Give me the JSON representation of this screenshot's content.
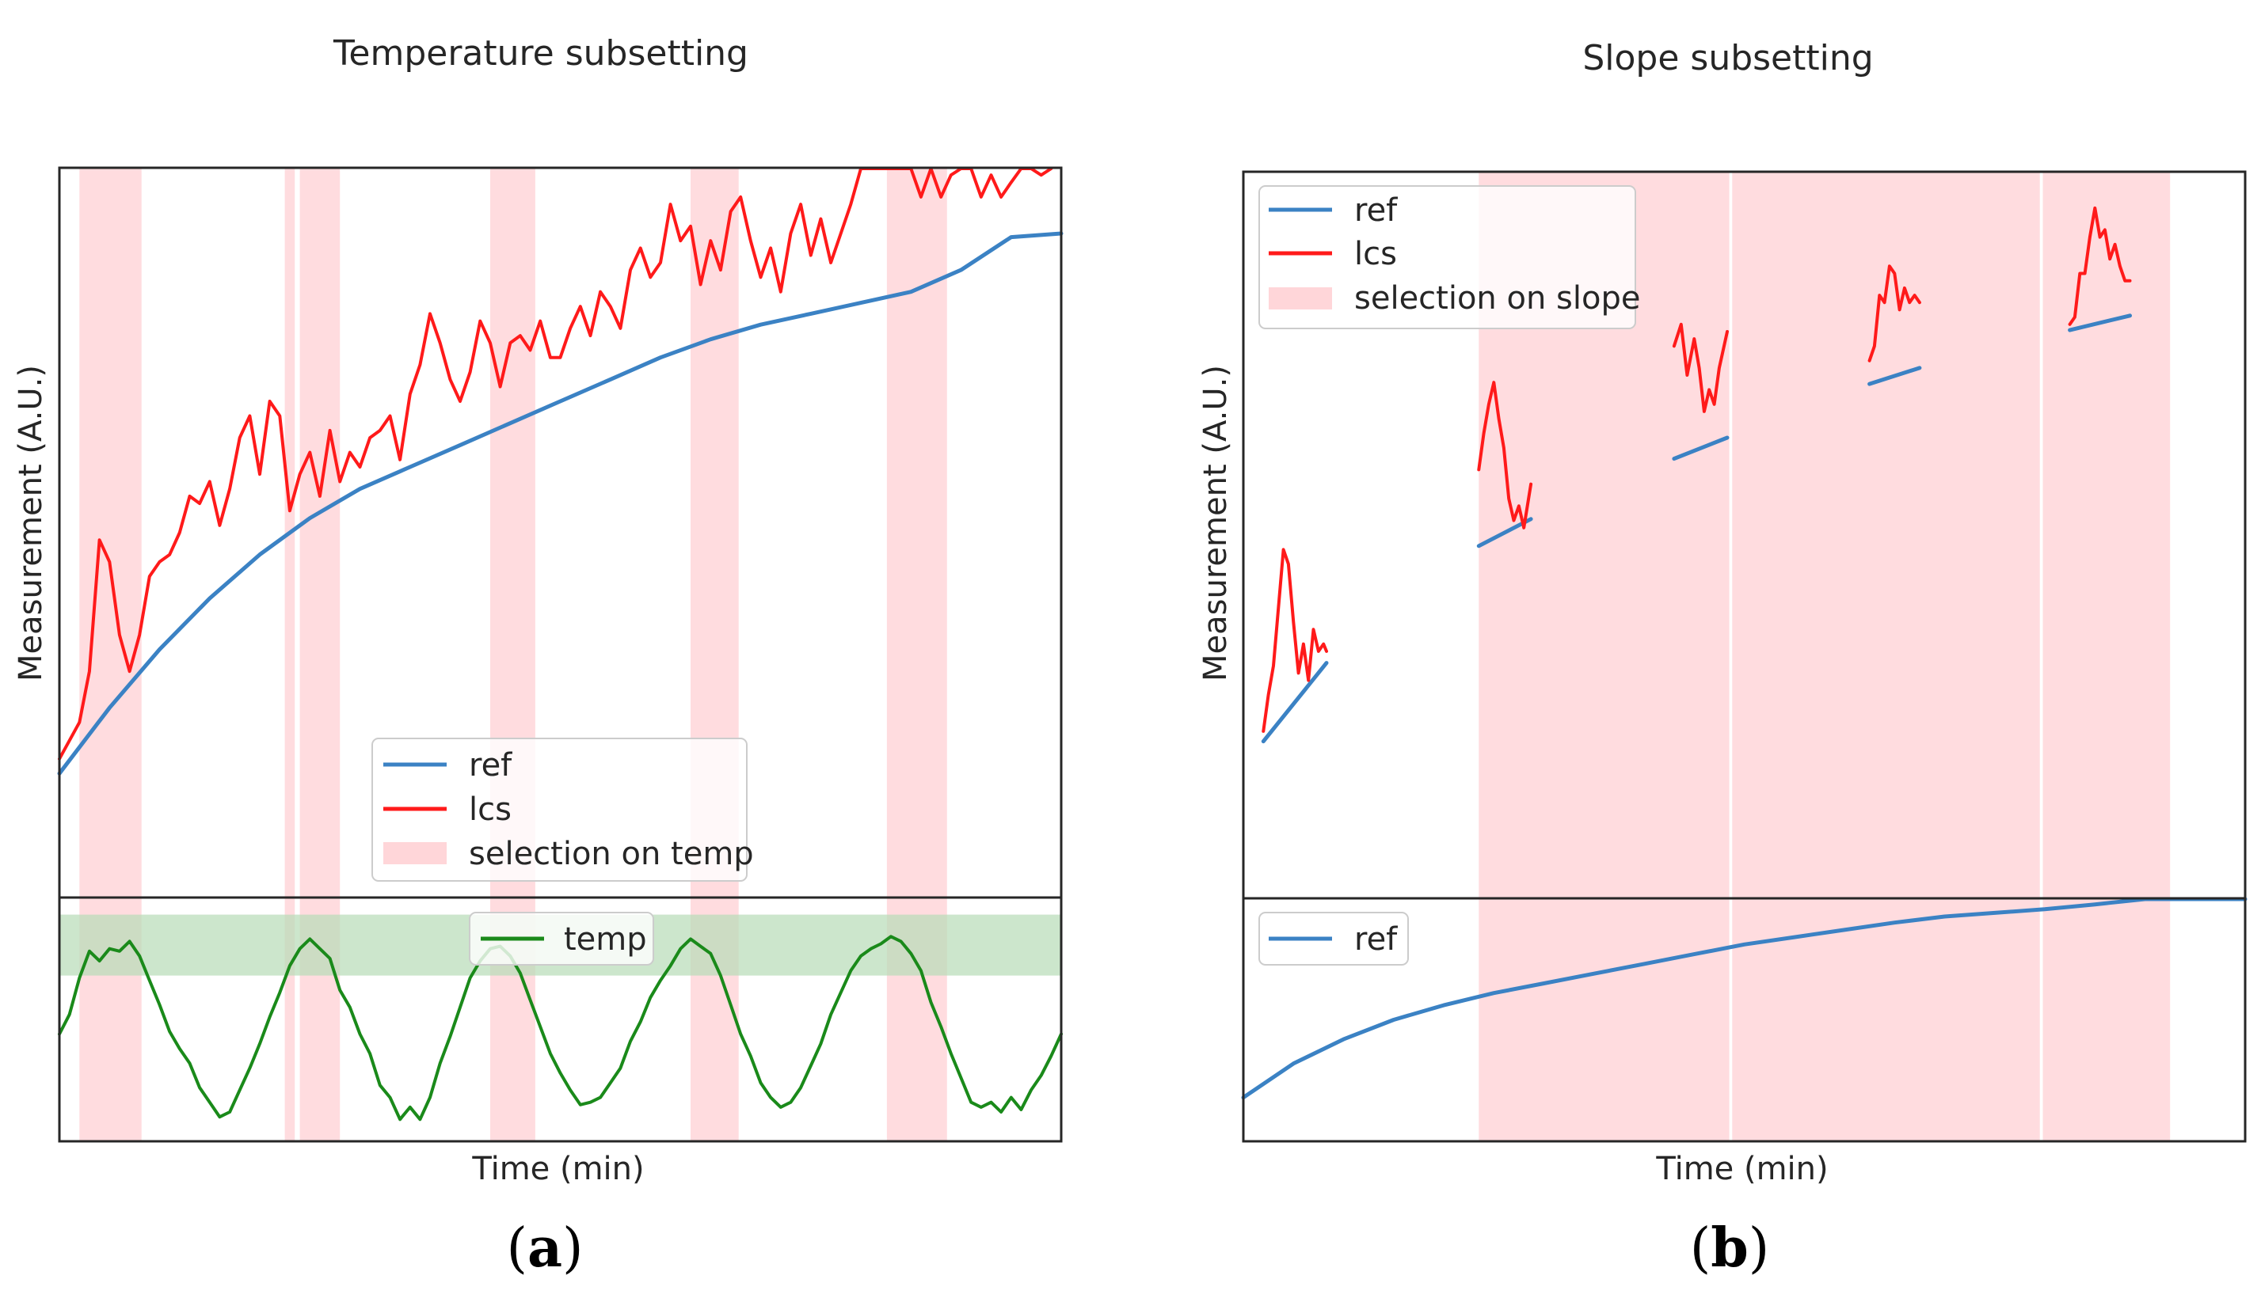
{
  "figure": {
    "caption_a": "(a)",
    "caption_b": "(b)",
    "caption_a_letter": "a",
    "caption_b_letter": "b"
  },
  "colors": {
    "ref": "#3b82c4",
    "lcs": "#ff1a1a",
    "temp": "#1a8a1a",
    "selection": "#ffd6d9",
    "temp_band": "#b7dcb7",
    "frame": "#262626"
  },
  "chart_data": [
    {
      "type": "line",
      "id": "panel-a",
      "title": "Temperature subsetting",
      "xlabel": "Time (min)",
      "ylabel": "Measurement (A.U.)",
      "xlim": [
        0,
        100
      ],
      "top": {
        "ylim": [
          0,
          100
        ],
        "legend": {
          "position": "lower-center",
          "entries": [
            "ref",
            "lcs",
            "selection on temp"
          ]
        },
        "series": [
          {
            "name": "ref",
            "x": [
              0,
              5,
              10,
              15,
              20,
              25,
              30,
              35,
              40,
              45,
              50,
              55,
              60,
              65,
              70,
              75,
              80,
              85,
              90,
              95,
              100
            ],
            "values": [
              17,
              26,
              34,
              41,
              47,
              52,
              56,
              59,
              62,
              65,
              68,
              71,
              74,
              76.5,
              78.5,
              80,
              81.5,
              83,
              86,
              90.5,
              91
            ]
          },
          {
            "name": "lcs",
            "x": [
              0,
              2,
              3,
              4,
              5,
              6,
              7,
              8,
              9,
              10,
              11,
              12,
              13,
              14,
              15,
              16,
              17,
              18,
              19,
              20,
              21,
              22,
              23,
              24,
              25,
              26,
              27,
              28,
              29,
              30,
              31,
              32,
              33,
              34,
              35,
              36,
              37,
              38,
              39,
              40,
              41,
              42,
              43,
              44,
              45,
              46,
              47,
              48,
              49,
              50,
              51,
              52,
              53,
              54,
              55,
              56,
              57,
              58,
              59,
              60,
              61,
              62,
              63,
              64,
              65,
              66,
              67,
              68,
              69,
              70,
              71,
              72,
              73,
              74,
              75,
              76,
              77,
              78,
              79,
              80,
              81,
              82,
              83,
              84,
              85,
              86,
              87,
              88,
              89,
              90,
              91,
              92,
              93,
              94,
              95,
              96,
              97,
              98,
              99
            ],
            "values": [
              19,
              24,
              31,
              49,
              46,
              36,
              31,
              36,
              44,
              46,
              47,
              50,
              55,
              54,
              57,
              51,
              56,
              63,
              66,
              58,
              68,
              66,
              53,
              58,
              61,
              55,
              64,
              57,
              61,
              59,
              63,
              64,
              66,
              60,
              69,
              73,
              80,
              76,
              71,
              68,
              72,
              79,
              76,
              70,
              76,
              77,
              75,
              79,
              74,
              74,
              78,
              81,
              77,
              83,
              81,
              78,
              86,
              89,
              85,
              87,
              95,
              90,
              92,
              84,
              90,
              86,
              94,
              96,
              90,
              85,
              89,
              83,
              91,
              95,
              88,
              93,
              87,
              91,
              95,
              100,
              103,
              105,
              100,
              102,
              100,
              96,
              100,
              96,
              99,
              104,
              101,
              96,
              99,
              96,
              98,
              103,
              100,
              99,
              101
            ]
          }
        ],
        "selections": [
          [
            2,
            8.2
          ],
          [
            22.5,
            23.5
          ],
          [
            24,
            28
          ],
          [
            43,
            47.5
          ],
          [
            63,
            67.8
          ],
          [
            82.6,
            88.6
          ]
        ]
      },
      "bottom": {
        "ylim": [
          0,
          100
        ],
        "legend": {
          "position": "top-center",
          "entries": [
            "temp"
          ]
        },
        "band": [
          68,
          93
        ],
        "series": [
          {
            "name": "temp",
            "x": [
              0,
              1,
              2,
              3,
              4,
              5,
              6,
              7,
              8,
              9,
              10,
              11,
              12,
              13,
              14,
              15,
              16,
              17,
              18,
              19,
              20,
              21,
              22,
              23,
              24,
              25,
              26,
              27,
              28,
              29,
              30,
              31,
              32,
              33,
              34,
              35,
              36,
              37,
              38,
              39,
              40,
              41,
              42,
              43,
              44,
              45,
              46,
              47,
              48,
              49,
              50,
              51,
              52,
              53,
              54,
              55,
              56,
              57,
              58,
              59,
              60,
              61,
              62,
              63,
              64,
              65,
              66,
              67,
              68,
              69,
              70,
              71,
              72,
              73,
              74,
              75,
              76,
              77,
              78,
              79,
              80,
              81,
              82,
              83,
              84,
              85,
              86,
              87,
              88,
              89,
              90,
              91,
              92,
              93,
              94,
              95,
              96,
              97,
              98,
              99,
              100
            ],
            "values": [
              44,
              52,
              67,
              78,
              74,
              79,
              78,
              82,
              76,
              66,
              56,
              45,
              38,
              32,
              22,
              16,
              10,
              12,
              21,
              30,
              40,
              51,
              61,
              72,
              79,
              83,
              79,
              75,
              62,
              55,
              44,
              36,
              23,
              18,
              9,
              14,
              9,
              18,
              32,
              43,
              55,
              67,
              74,
              79,
              80,
              76,
              69,
              58,
              47,
              36,
              28,
              21,
              15,
              16,
              18,
              24,
              30,
              41,
              49,
              59,
              66,
              72,
              79,
              83,
              80,
              77,
              68,
              56,
              44,
              35,
              24,
              18,
              14,
              16,
              22,
              31,
              40,
              52,
              61,
              70,
              76,
              79,
              81,
              84,
              82,
              77,
              70,
              57,
              47,
              36,
              26,
              16,
              14,
              16,
              12,
              18,
              13,
              21,
              27,
              35,
              44
            ]
          }
        ]
      }
    },
    {
      "type": "line",
      "id": "panel-b",
      "title": "Slope subsetting",
      "xlabel": "Time (min)",
      "ylabel": "Measurement (A.U.)",
      "xlim": [
        0,
        100
      ],
      "top": {
        "ylim": [
          0,
          100
        ],
        "legend": {
          "position": "top-left",
          "entries": [
            "ref",
            "lcs",
            "selection on slope"
          ]
        },
        "selections": [
          [
            23.5,
            48.5
          ],
          [
            48.8,
            79.5
          ],
          [
            79.8,
            92.5
          ]
        ],
        "segments": [
          {
            "ref": {
              "x": [
                2,
                8.3
              ],
              "values": [
                21.6,
                32.4
              ]
            },
            "lcs": {
              "x": [
                2,
                2.5,
                3,
                3.5,
                4,
                4.5,
                5,
                5.5,
                6,
                6.5,
                7,
                7.5,
                8,
                8.3
              ],
              "values": [
                23,
                28,
                32,
                40,
                48,
                46,
                38,
                31,
                35,
                30,
                37,
                34,
                35,
                34
              ]
            }
          },
          {
            "ref": {
              "x": [
                23.5,
                28.7
              ],
              "values": [
                48.5,
                52.2
              ]
            },
            "lcs": {
              "x": [
                23.5,
                24,
                24.5,
                25,
                25.5,
                26,
                26.5,
                27,
                27.5,
                28,
                28.7
              ],
              "values": [
                59,
                64,
                68,
                71,
                66,
                62,
                55,
                52,
                54,
                51,
                57
              ]
            }
          },
          {
            "ref": {
              "x": [
                43,
                48.3
              ],
              "values": [
                60.5,
                63.4
              ]
            },
            "lcs": {
              "x": [
                43,
                43.7,
                44.3,
                45,
                45.5,
                46,
                46.5,
                47,
                47.5,
                48.3
              ],
              "values": [
                76,
                79,
                72,
                77,
                73,
                67,
                70,
                68,
                73,
                78
              ]
            }
          },
          {
            "ref": {
              "x": [
                62.5,
                67.5
              ],
              "values": [
                70.8,
                73
              ]
            },
            "lcs": {
              "x": [
                62.5,
                63,
                63.5,
                64,
                64.5,
                65,
                65.5,
                66,
                66.5,
                67,
                67.5
              ],
              "values": [
                74,
                76,
                83,
                82,
                87,
                86,
                81,
                84,
                82,
                83,
                82
              ]
            }
          },
          {
            "ref": {
              "x": [
                82.5,
                88.5
              ],
              "values": [
                78.2,
                80.2
              ]
            },
            "lcs": {
              "x": [
                82.5,
                83,
                83.5,
                84,
                84.5,
                85,
                85.5,
                86,
                86.5,
                87,
                87.5,
                88,
                88.5
              ],
              "values": [
                79,
                80,
                86,
                86,
                91,
                95,
                91,
                92,
                88,
                90,
                87,
                85,
                85
              ]
            }
          }
        ]
      },
      "bottom": {
        "ylim": [
          0,
          100
        ],
        "legend": {
          "position": "top-left",
          "entries": [
            "ref"
          ]
        },
        "selections": [
          [
            23.5,
            48.5
          ],
          [
            48.8,
            79.5
          ],
          [
            79.8,
            92.5
          ]
        ],
        "series": [
          {
            "name": "ref",
            "x": [
              0,
              5,
              10,
              15,
              20,
              25,
              30,
              35,
              40,
              45,
              50,
              55,
              60,
              65,
              70,
              75,
              80,
              85,
              90,
              95,
              100
            ],
            "values": [
              18,
              32,
              42,
              50,
              56,
              61,
              65,
              69,
              73,
              77,
              81,
              84,
              87,
              90,
              92.5,
              94,
              95.5,
              97.5,
              101,
              107,
              114
            ]
          }
        ]
      }
    }
  ]
}
